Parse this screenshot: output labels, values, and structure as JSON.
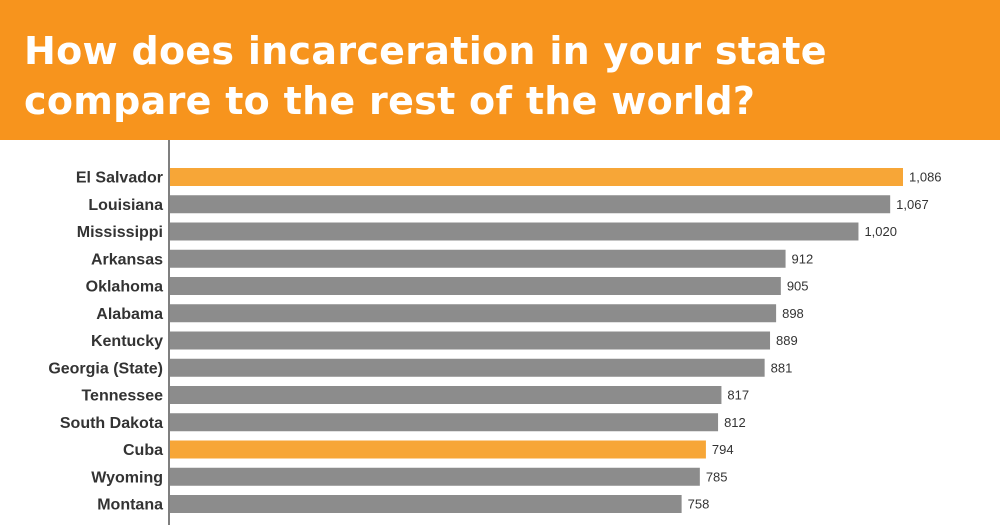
{
  "header": {
    "title_line1": "How does incarceration in your state",
    "title_line2": "compare to the rest of the world?"
  },
  "colors": {
    "header_bg": "#f7941d",
    "highlight_bar": "#f7a637",
    "default_bar": "#8c8c8c",
    "axis": "#555555"
  },
  "chart_data": {
    "type": "bar",
    "orientation": "horizontal",
    "title": "How does incarceration in your state compare to the rest of the world?",
    "categories": [
      "El Salvador",
      "Louisiana",
      "Mississippi",
      "Arkansas",
      "Oklahoma",
      "Alabama",
      "Kentucky",
      "Georgia (State)",
      "Tennessee",
      "South Dakota",
      "Cuba",
      "Wyoming",
      "Montana"
    ],
    "values": [
      1086,
      1067,
      1020,
      912,
      905,
      898,
      889,
      881,
      817,
      812,
      794,
      785,
      758
    ],
    "value_labels": [
      "1,086",
      "1,067",
      "1,020",
      "912",
      "905",
      "898",
      "889",
      "881",
      "817",
      "812",
      "794",
      "785",
      "758"
    ],
    "highlighted": [
      "El Salvador",
      "Cuba"
    ],
    "xlim": [
      0,
      1086
    ],
    "xlabel": "",
    "ylabel": "",
    "grid": false,
    "legend": "none"
  }
}
